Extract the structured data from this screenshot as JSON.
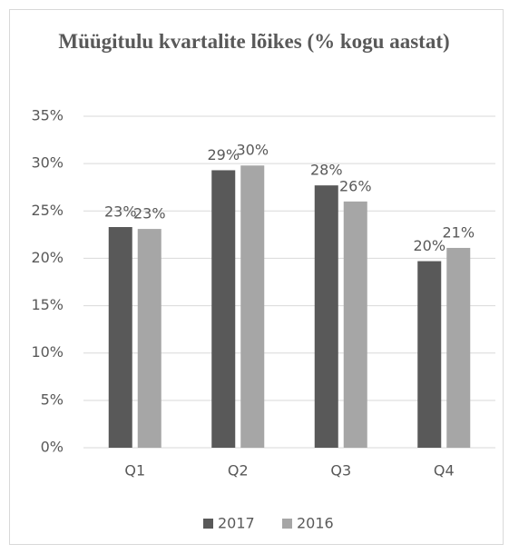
{
  "chart_data": {
    "type": "bar",
    "title": "Müügitulu kvartalite lõikes (% kogu aastat)",
    "categories": [
      "Q1",
      "Q2",
      "Q3",
      "Q4"
    ],
    "series": [
      {
        "name": "2017",
        "color": "#595959",
        "values": [
          23.3,
          29.3,
          27.7,
          19.7
        ],
        "value_labels": [
          "23%",
          "29%",
          "28%",
          "20%"
        ]
      },
      {
        "name": "2016",
        "color": "#a6a6a6",
        "values": [
          23.1,
          29.8,
          26.0,
          21.1
        ],
        "value_labels": [
          "23%",
          "30%",
          "26%",
          "21%"
        ]
      }
    ],
    "ylim": [
      0,
      35
    ],
    "yticks": [
      {
        "value": 0,
        "label": "0%"
      },
      {
        "value": 5,
        "label": "5%"
      },
      {
        "value": 10,
        "label": "10%"
      },
      {
        "value": 15,
        "label": "15%"
      },
      {
        "value": 20,
        "label": "20%"
      },
      {
        "value": 25,
        "label": "25%"
      },
      {
        "value": 30,
        "label": "30%"
      },
      {
        "value": 35,
        "label": "35%"
      }
    ],
    "grid": true,
    "legend": "bottom"
  }
}
